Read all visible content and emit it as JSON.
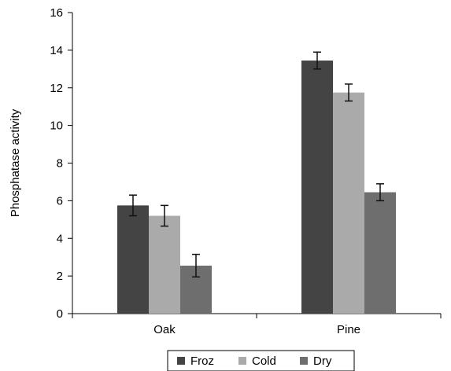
{
  "chart_data": {
    "type": "bar",
    "title": "",
    "xlabel": "",
    "ylabel": "Phosphatase activity",
    "ylim": [
      0,
      16
    ],
    "yticks": [
      0,
      2,
      4,
      6,
      8,
      10,
      12,
      14,
      16
    ],
    "categories": [
      "Oak",
      "Pine"
    ],
    "series": [
      {
        "name": "Froz",
        "color": "#444444",
        "values": [
          5.75,
          13.45
        ],
        "errors": [
          0.55,
          0.45
        ]
      },
      {
        "name": "Cold",
        "color": "#aaaaaa",
        "values": [
          5.2,
          11.75
        ],
        "errors": [
          0.55,
          0.45
        ]
      },
      {
        "name": "Dry",
        "color": "#6e6e6e",
        "values": [
          2.55,
          6.45
        ],
        "errors": [
          0.6,
          0.45
        ]
      }
    ],
    "error_bars": true,
    "grid": false,
    "legend_position": "bottom"
  }
}
